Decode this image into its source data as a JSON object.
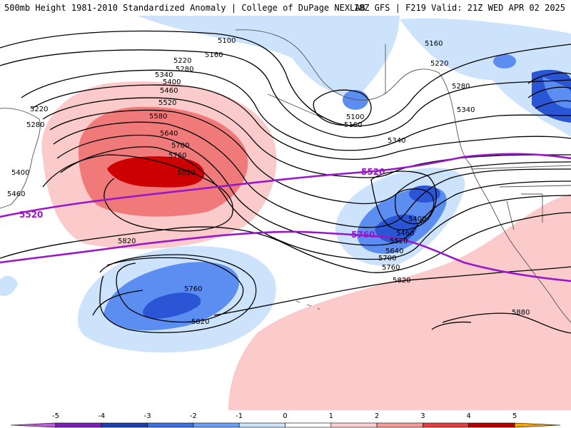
{
  "header": {
    "title_left": "500mb Height 1981-2010 Standardized Anomaly | College of DuPage NEXLAB",
    "title_right": "18Z GFS | F219 Valid: 21Z WED APR 02 2025"
  },
  "colors": {
    "neg_light": "#cce3fb",
    "neg_mid": "#5b8ef0",
    "neg_dark": "#2a56d6",
    "pos_light": "#fbcaca",
    "pos_mid": "#f07a7a",
    "pos_dark": "#cc0000",
    "highlight_contour": "#9a16c9",
    "coast": "#555555"
  },
  "contour_labels": [
    "5100",
    "5160",
    "5220",
    "5280",
    "5340",
    "5400",
    "5460",
    "5520",
    "5580",
    "5640",
    "5700",
    "5760",
    "5820",
    "5220",
    "5280",
    "5400",
    "5460",
    "5820",
    "5760",
    "5820",
    "5100",
    "5160",
    "5340",
    "5400",
    "5460",
    "5520",
    "5640",
    "5700",
    "5760",
    "5820",
    "5160",
    "5220",
    "5280",
    "5340",
    "5880"
  ],
  "highlight_labels": [
    "5520",
    "5520",
    "5760"
  ],
  "legend": {
    "ticks": [
      "-5",
      "-4",
      "-3",
      "-2",
      "-1",
      "0",
      "1",
      "2",
      "3",
      "4",
      "5"
    ],
    "colors": [
      "#c25bd6",
      "#7a1fb8",
      "#1d3fb0",
      "#3d6fe0",
      "#6f9ff2",
      "#cde2fb",
      "#ffffff",
      "#fbd0d0",
      "#f49a9a",
      "#e24040",
      "#b80000",
      "#f7a400"
    ]
  }
}
